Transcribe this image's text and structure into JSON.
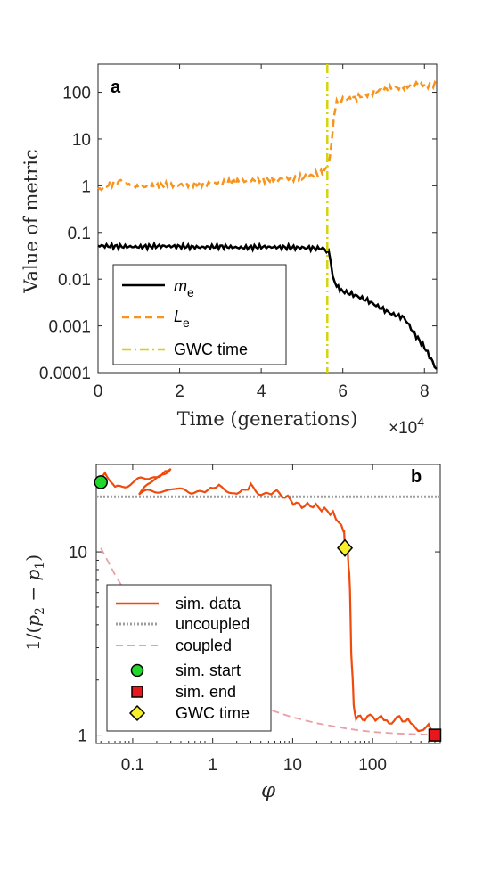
{
  "chart_data": [
    {
      "type": "line",
      "panel_label": "a",
      "xlabel": "Time (generations)",
      "x_multiplier": "×10^4",
      "x_multiplier_base": "×10",
      "x_multiplier_exp": "4",
      "ylabel": "Value of metric",
      "xlim": [
        0,
        8.3
      ],
      "ylim": [
        0.0001,
        400
      ],
      "yscale": "log",
      "xticks": [
        0,
        2,
        4,
        6,
        8
      ],
      "xtick_labels": [
        "0",
        "2",
        "4",
        "6",
        "8"
      ],
      "yticks": [
        0.0001,
        0.001,
        0.01,
        0.1,
        1,
        10,
        100
      ],
      "ytick_labels": [
        "0.0001",
        "0.001",
        "0.01",
        "0.1",
        "1",
        "10",
        "100"
      ],
      "legend_placement": "bottom-left",
      "series": [
        {
          "name": "m",
          "name_sub": "e",
          "color": "#000000",
          "style": "solid",
          "x": [
            0,
            0.5,
            1,
            1.5,
            2,
            2.5,
            3,
            3.5,
            4,
            4.5,
            5,
            5.3,
            5.55,
            5.65,
            5.75,
            5.85,
            6.0,
            6.3,
            6.6,
            6.9,
            7.2,
            7.5,
            7.8,
            8.0,
            8.2,
            8.3
          ],
          "y": [
            0.052,
            0.05,
            0.049,
            0.051,
            0.05,
            0.048,
            0.05,
            0.047,
            0.049,
            0.048,
            0.047,
            0.046,
            0.045,
            0.04,
            0.012,
            0.007,
            0.0055,
            0.0045,
            0.0035,
            0.0025,
            0.0018,
            0.0015,
            0.0006,
            0.00035,
            0.00017,
            0.00012
          ]
        },
        {
          "name": "L",
          "name_sub": "e",
          "color": "#f7941d",
          "style": "dashed",
          "x": [
            0,
            0.3,
            0.6,
            0.8,
            1.0,
            1.5,
            2,
            2.5,
            3,
            3.5,
            4,
            4.5,
            5,
            5.3,
            5.55,
            5.65,
            5.72,
            5.78,
            5.85,
            6.0,
            6.3,
            6.6,
            6.9,
            7.2,
            7.5,
            7.8,
            8.0,
            8.3
          ],
          "y": [
            0.8,
            1.1,
            1.3,
            1.0,
            0.95,
            1.0,
            1.05,
            1.1,
            1.15,
            1.25,
            1.35,
            1.4,
            1.5,
            1.7,
            2.0,
            2.8,
            8,
            30,
            60,
            70,
            75,
            90,
            110,
            120,
            130,
            150,
            140,
            145
          ]
        }
      ],
      "vline": {
        "name": "GWC time",
        "x": 5.62,
        "color": "#d4d40a",
        "style": "dashdot"
      }
    },
    {
      "type": "line",
      "panel_label": "b",
      "xlabel": "φ",
      "ylabel": "1/(p₂ − p₁)",
      "ylabel_parts": [
        "1/(",
        "p",
        "2",
        " − ",
        "p",
        "1",
        ")"
      ],
      "xscale": "log",
      "yscale": "log",
      "xlim": [
        0.035,
        700
      ],
      "ylim": [
        0.9,
        30
      ],
      "xticks": [
        0.1,
        1,
        10,
        100
      ],
      "xtick_labels": [
        "0.1",
        "1",
        "10",
        "100"
      ],
      "yticks": [
        1,
        10
      ],
      "ytick_labels": [
        "1",
        "10"
      ],
      "legend_placement": "bottom-left",
      "series": [
        {
          "name": "sim. data",
          "color": "#f04a0c",
          "style": "solid",
          "x": [
            0.04,
            0.045,
            0.06,
            0.1,
            0.2,
            0.3,
            0.12,
            0.4,
            0.8,
            1.2,
            2,
            3,
            5,
            8,
            12,
            18,
            25,
            32,
            38,
            43,
            45,
            48,
            50,
            52,
            54,
            56,
            58,
            62,
            70,
            80,
            100,
            150,
            200,
            300,
            400,
            500,
            600
          ],
          "y": [
            24,
            27,
            22,
            24,
            26,
            29,
            21,
            22,
            21,
            22.5,
            20.5,
            22,
            20,
            21,
            19,
            18.5,
            17,
            16,
            14.5,
            13,
            11,
            10.5,
            9,
            6,
            3,
            2,
            1.5,
            1.2,
            1.3,
            1.15,
            1.2,
            1.25,
            1.2,
            1.1,
            1.15,
            1.1,
            1.0
          ]
        },
        {
          "name": "uncoupled",
          "color": "#9e9e9e",
          "style": "dotted",
          "x": [
            0.035,
            700
          ],
          "y": [
            20,
            20
          ]
        },
        {
          "name": "coupled",
          "color": "#e8a0a8",
          "style": "dashed",
          "x": [
            0.04,
            0.06,
            0.1,
            0.2,
            0.5,
            1,
            2,
            5,
            10,
            20,
            50,
            100,
            200,
            400,
            600
          ],
          "y": [
            10.5,
            7.5,
            5.2,
            3.6,
            2.4,
            1.95,
            1.6,
            1.38,
            1.25,
            1.16,
            1.08,
            1.04,
            1.02,
            1.01,
            1.0
          ]
        }
      ],
      "markers": [
        {
          "name": "sim. start",
          "x": 0.04,
          "y": 24,
          "shape": "circle",
          "color": "#21d82a"
        },
        {
          "name": "sim. end",
          "x": 600,
          "y": 1.0,
          "shape": "square",
          "color": "#e8171b"
        },
        {
          "name": "GWC time",
          "x": 45,
          "y": 10.5,
          "shape": "diamond",
          "color": "#f7ef2a"
        }
      ]
    }
  ]
}
